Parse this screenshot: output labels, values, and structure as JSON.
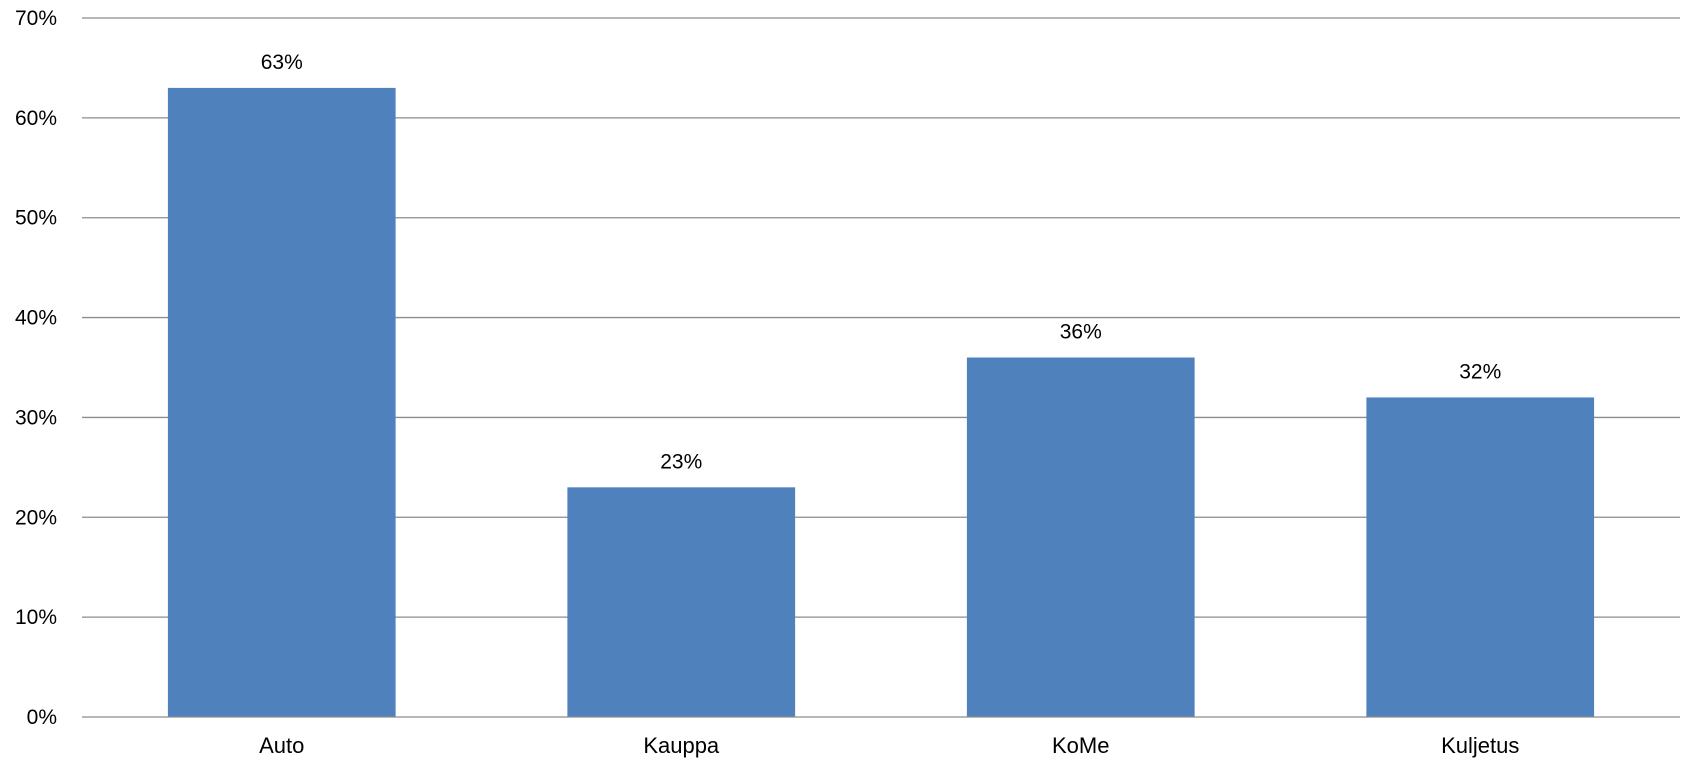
{
  "chart_data": {
    "type": "bar",
    "categories": [
      "Auto",
      "Kauppa",
      "KoMe",
      "Kuljetus"
    ],
    "values": [
      63,
      23,
      36,
      32
    ],
    "data_labels": [
      "63%",
      "23%",
      "36%",
      "32%"
    ],
    "y_tick_labels": [
      "0%",
      "10%",
      "20%",
      "30%",
      "40%",
      "50%",
      "60%",
      "70%"
    ],
    "ylim": [
      0,
      70
    ],
    "y_tick_step": 10,
    "title": "",
    "xlabel": "",
    "ylabel": "",
    "grid": true,
    "legend": "none",
    "bar_color": "#4f81bd"
  }
}
